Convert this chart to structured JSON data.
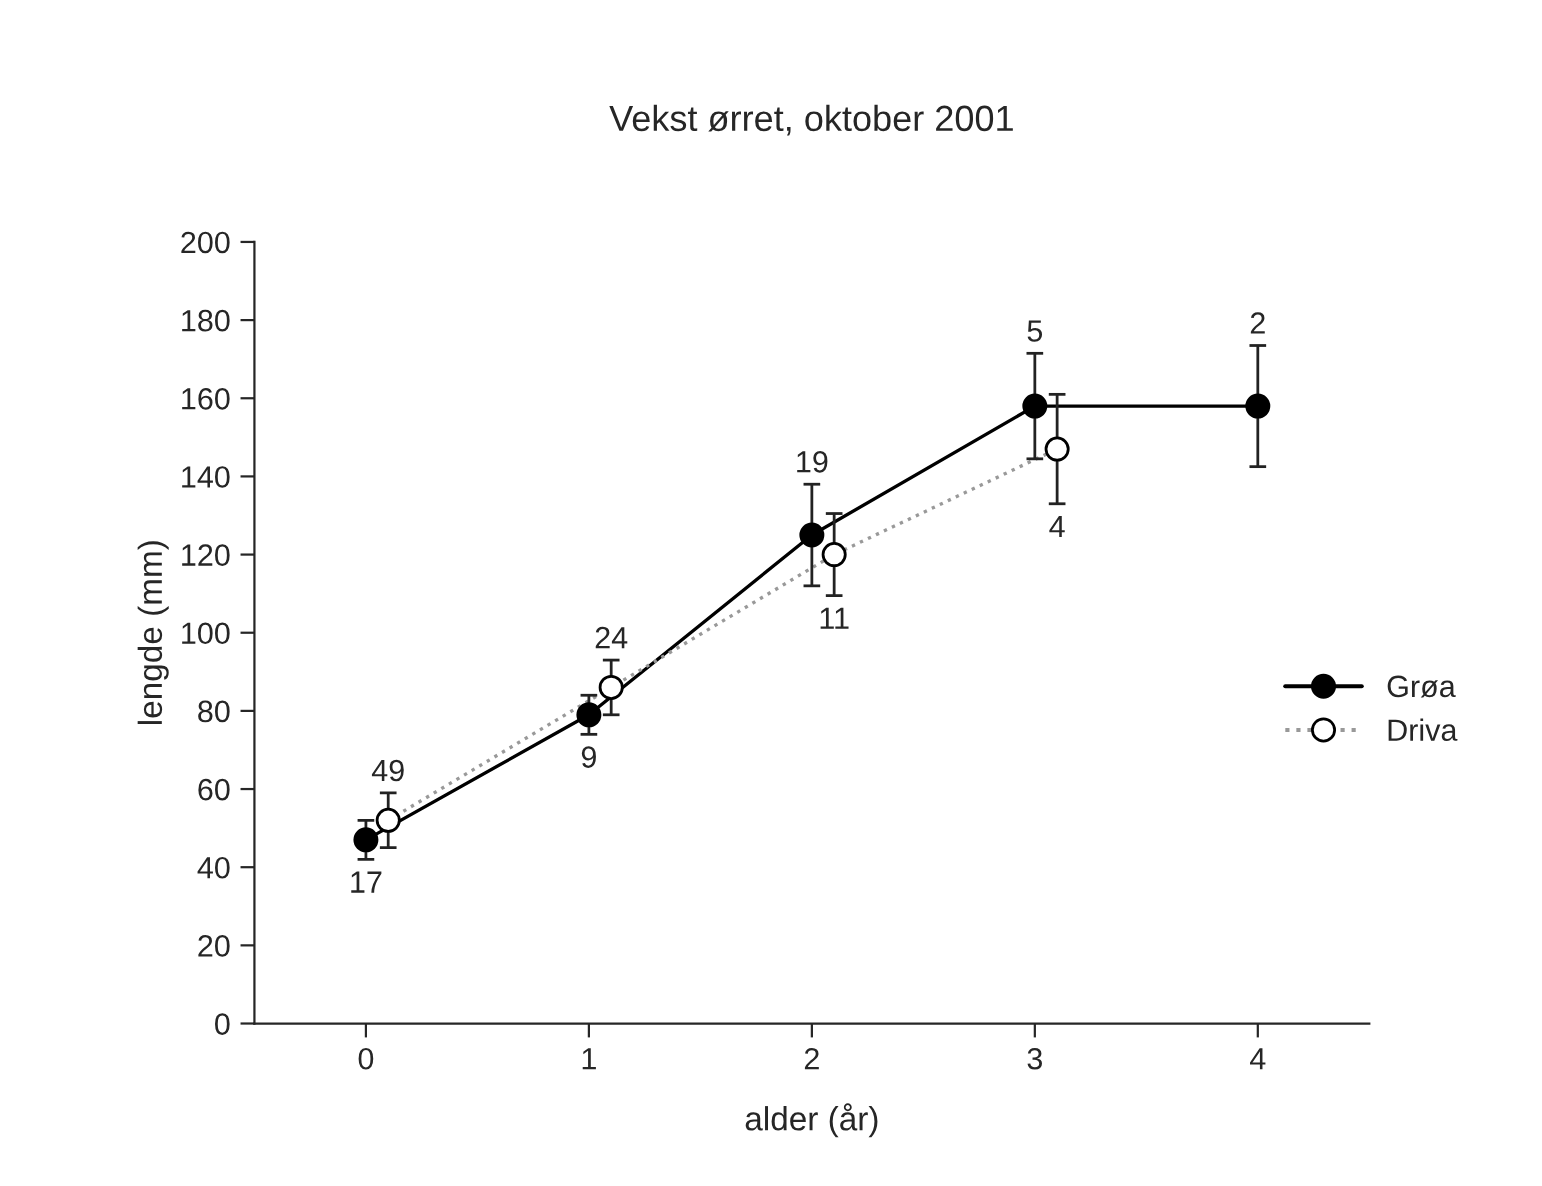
{
  "chart_data": {
    "type": "line",
    "title": "Vekst ørret, oktober 2001",
    "xlabel": "alder (år)",
    "ylabel": "lengde (mm)",
    "xlim": [
      -0.5,
      4.5
    ],
    "xticks": [
      0,
      1,
      2,
      3,
      4
    ],
    "ylim": [
      0,
      200
    ],
    "yticks": [
      0,
      20,
      40,
      60,
      80,
      100,
      120,
      140,
      160,
      180,
      200
    ],
    "grid": false,
    "legend": "right",
    "marker": "circle",
    "series": [
      {
        "name": "Grøa",
        "color": "#000000",
        "line_style": "solid",
        "x": [
          0,
          1,
          2,
          3,
          4
        ],
        "values": [
          47,
          79,
          125,
          158,
          158
        ],
        "errors": [
          5,
          5,
          13,
          13.5,
          15.5
        ]
      },
      {
        "name": "Driva",
        "color": "#999999",
        "line_style": "dotted",
        "x": [
          0.1,
          1.1,
          2.1,
          3.1
        ],
        "values": [
          52,
          86,
          120,
          147
        ],
        "errors": [
          7,
          7,
          10.5,
          14
        ]
      }
    ],
    "annotations": [
      {
        "text": "17",
        "x": 0,
        "y": 47
      },
      {
        "text": "49",
        "x": 0.1,
        "y": 52
      },
      {
        "text": "9",
        "x": 1,
        "y": 79
      },
      {
        "text": "24",
        "x": 1.1,
        "y": 86
      },
      {
        "text": "19",
        "x": 2,
        "y": 125
      },
      {
        "text": "11",
        "x": 2.1,
        "y": 120
      },
      {
        "text": "5",
        "x": 3,
        "y": 158
      },
      {
        "text": "4",
        "x": 3.1,
        "y": 147
      },
      {
        "text": "2",
        "x": 4,
        "y": 158
      }
    ]
  }
}
